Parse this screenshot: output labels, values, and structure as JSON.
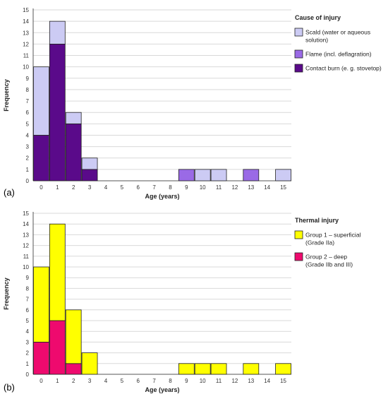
{
  "chart_data": [
    {
      "type": "bar",
      "stacked": true,
      "panel_label": "(a)",
      "xlabel": "Age (years)",
      "ylabel": "Frequency",
      "ylim": [
        0,
        15
      ],
      "yticks": [
        "0",
        "1",
        "2",
        "3",
        "4",
        "5",
        "6",
        "7",
        "8",
        "9",
        "10",
        "11",
        "12",
        "13",
        "14",
        "15"
      ],
      "categories": [
        "0",
        "1",
        "2",
        "3",
        "4",
        "5",
        "6",
        "7",
        "8",
        "9",
        "10",
        "11",
        "12",
        "13",
        "14",
        "15"
      ],
      "grid": "horizontal",
      "legend_position": "right",
      "legend_title": "Cause of injury",
      "series": [
        {
          "name": "Contact burn (e. g. stovetop)",
          "color": "#5a0a8a",
          "values": [
            4,
            12,
            5,
            1,
            0,
            0,
            0,
            0,
            0,
            0,
            0,
            0,
            0,
            0,
            0,
            0
          ]
        },
        {
          "name": "Flame (incl. deflagration)",
          "color": "#9a6ae6",
          "values": [
            0,
            0,
            0,
            0,
            0,
            0,
            0,
            0,
            0,
            1,
            0,
            0,
            0,
            1,
            0,
            0
          ]
        },
        {
          "name": "Scald (water or aqueous solution)",
          "color": "#cccbf4",
          "values": [
            6,
            2,
            1,
            1,
            0,
            0,
            0,
            0,
            0,
            0,
            1,
            1,
            0,
            0,
            0,
            1
          ]
        }
      ],
      "legend": [
        {
          "lines": [
            "Scald (water or aqueous",
            "solution)"
          ],
          "color": "#cccbf4"
        },
        {
          "lines": [
            "Flame (incl. deflagration)"
          ],
          "color": "#9a6ae6"
        },
        {
          "lines": [
            "Contact burn (e. g. stovetop)"
          ],
          "color": "#5a0a8a"
        }
      ]
    },
    {
      "type": "bar",
      "stacked": true,
      "panel_label": "(b)",
      "xlabel": "Age (years)",
      "ylabel": "Frequency",
      "ylim": [
        0,
        15
      ],
      "yticks": [
        "0",
        "1",
        "2",
        "3",
        "4",
        "5",
        "6",
        "7",
        "8",
        "9",
        "10",
        "11",
        "12",
        "13",
        "14",
        "15"
      ],
      "categories": [
        "0",
        "1",
        "2",
        "3",
        "4",
        "5",
        "6",
        "7",
        "8",
        "9",
        "10",
        "11",
        "12",
        "13",
        "14",
        "15"
      ],
      "grid": "horizontal",
      "legend_position": "right",
      "legend_title": "Thermal injury",
      "series": [
        {
          "name": "Group 2 – deep (Grade IIb and III)",
          "color": "#ee0a6e",
          "values": [
            3,
            5,
            1,
            0,
            0,
            0,
            0,
            0,
            0,
            0,
            0,
            0,
            0,
            0,
            0,
            0
          ]
        },
        {
          "name": "Group 1 – superficial (Grade IIa)",
          "color": "#ffff00",
          "values": [
            7,
            9,
            5,
            2,
            0,
            0,
            0,
            0,
            0,
            1,
            1,
            1,
            0,
            1,
            0,
            1
          ]
        }
      ],
      "legend": [
        {
          "lines": [
            "Group 1 – superficial",
            "(Grade IIa)"
          ],
          "color": "#ffff00"
        },
        {
          "lines": [
            "Group 2 – deep",
            "(Grade IIb and III)"
          ],
          "color": "#ee0a6e"
        }
      ]
    }
  ]
}
